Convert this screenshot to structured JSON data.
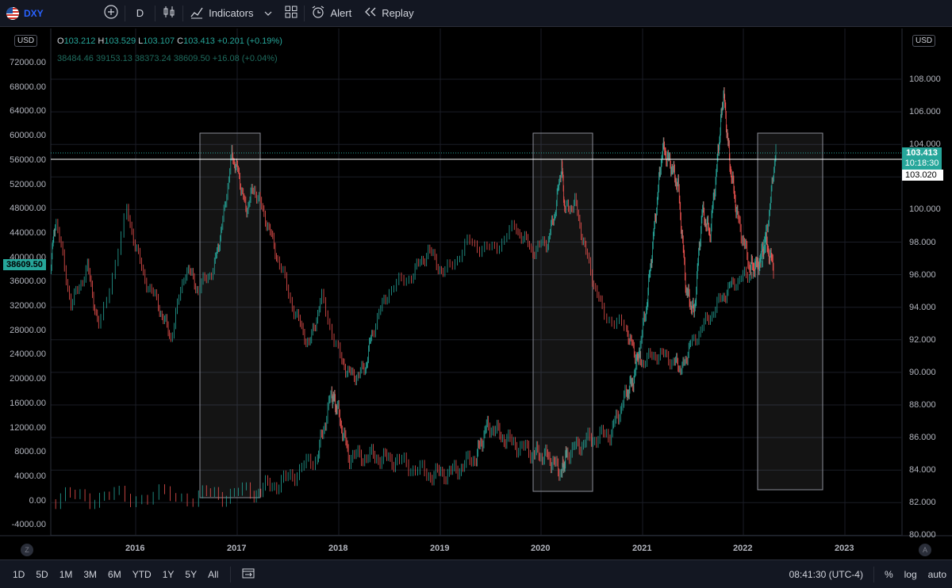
{
  "toolbar": {
    "symbol": "DXY",
    "add_icon": "plus-circle-icon",
    "interval": "D",
    "chart_type_icon": "candles-icon",
    "indicators_label": "Indicators",
    "layouts_icon": "grid-icon",
    "alert_label": "Alert",
    "replay_label": "Replay"
  },
  "legend": {
    "open_label": "O",
    "open": "103.212",
    "high_label": "H",
    "high": "103.529",
    "low_label": "L",
    "low": "103.107",
    "close_label": "C",
    "close": "103.413",
    "change": "+0.201 (+0.19%)",
    "overlay_values": "38484.46  39153.13  38373.24  38609.50  +16.08 (+0.04%)"
  },
  "left_axis": {
    "currency": "USD",
    "ticks": [
      "72000.00",
      "68000.00",
      "64000.00",
      "60000.00",
      "56000.00",
      "52000.00",
      "48000.00",
      "44000.00",
      "40000.00",
      "36000.00",
      "32000.00",
      "28000.00",
      "24000.00",
      "20000.00",
      "16000.00",
      "12000.00",
      "8000.00",
      "4000.00",
      "0.00",
      "-4000.00"
    ],
    "last_price": "38609.50"
  },
  "right_axis": {
    "currency": "USD",
    "ticks": [
      "108.000",
      "106.000",
      "104.000",
      "102.000",
      "100.000",
      "98.000",
      "96.000",
      "94.000",
      "92.000",
      "90.000",
      "88.000",
      "86.000",
      "84.000",
      "82.000",
      "80.000"
    ],
    "last_price": "103.413",
    "countdown": "10:18:30",
    "line_price": "103.020"
  },
  "x_axis": {
    "years": [
      "2016",
      "2017",
      "2018",
      "2019",
      "2020",
      "2021",
      "2022",
      "2023"
    ]
  },
  "corner": {
    "left": "Z",
    "right": "A"
  },
  "colors": {
    "up": "#26a69a",
    "down": "#ef5350",
    "bg": "#000000",
    "accent": "#2962ff"
  },
  "bottombar": {
    "ranges": [
      "1D",
      "5D",
      "1M",
      "3M",
      "6M",
      "YTD",
      "1Y",
      "5Y",
      "All"
    ],
    "goto_icon": "calendar-range-icon",
    "time": "08:41:30 (UTC-4)",
    "percent": "%",
    "log": "log",
    "auto": "auto"
  }
}
